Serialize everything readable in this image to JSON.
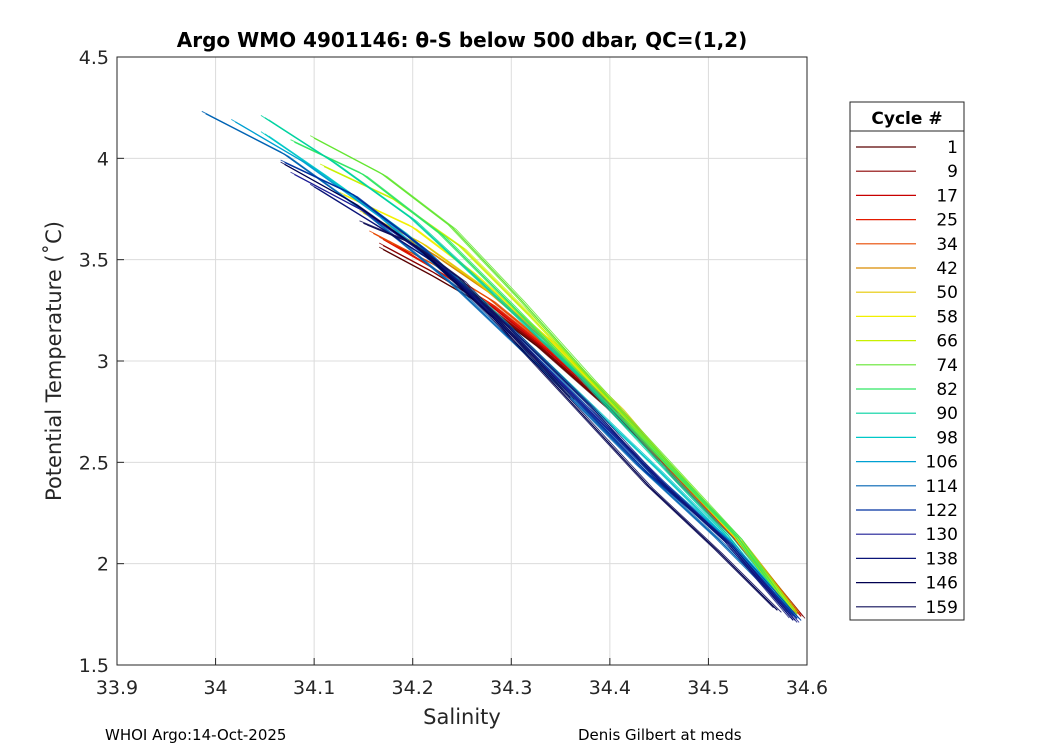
{
  "chart_data": {
    "type": "line",
    "title": "Argo WMO 4901146: θ-S below 500 dbar,  QC=(1,2)",
    "xlabel": "Salinity",
    "ylabel": "Potential Temperature (˚C)",
    "xlim": [
      33.9,
      34.6
    ],
    "ylim": [
      1.5,
      4.5
    ],
    "xticks": [
      "33.9",
      "34",
      "34.1",
      "34.2",
      "34.3",
      "34.4",
      "34.5",
      "34.6"
    ],
    "yticks": [
      "1.5",
      "2",
      "2.5",
      "3",
      "3.5",
      "4",
      "4.5"
    ],
    "grid": true,
    "legend": {
      "title": "Cycle #",
      "position": "right",
      "entries": [
        "1",
        "9",
        "17",
        "25",
        "34",
        "42",
        "50",
        "58",
        "66",
        "74",
        "82",
        "90",
        "98",
        "106",
        "114",
        "122",
        "130",
        "138",
        "146",
        "159"
      ],
      "colors": [
        "#5a0000",
        "#8c0000",
        "#c80000",
        "#e31a00",
        "#e84a00",
        "#d98c00",
        "#e6c800",
        "#f2f000",
        "#c8f000",
        "#64e632",
        "#32e664",
        "#00d2a0",
        "#00c8c8",
        "#00a0d2",
        "#0064b4",
        "#0032a0",
        "#1e1e96",
        "#0a1478",
        "#000050",
        "#10105a"
      ]
    },
    "series": [
      {
        "name": "1",
        "x": [
          34.17,
          34.22,
          34.27,
          34.33,
          34.4,
          34.47,
          34.53,
          34.594
        ],
        "y": [
          3.55,
          3.42,
          3.28,
          3.06,
          2.76,
          2.42,
          2.12,
          1.74
        ]
      },
      {
        "name": "9",
        "x": [
          34.17,
          34.22,
          34.27,
          34.33,
          34.4,
          34.47,
          34.53,
          34.592
        ],
        "y": [
          3.57,
          3.44,
          3.29,
          3.07,
          2.77,
          2.42,
          2.12,
          1.75
        ]
      },
      {
        "name": "17",
        "x": [
          34.18,
          34.23,
          34.28,
          34.34,
          34.41,
          34.47,
          34.53,
          34.59
        ],
        "y": [
          3.58,
          3.43,
          3.27,
          3.04,
          2.74,
          2.4,
          2.11,
          1.76
        ]
      },
      {
        "name": "25",
        "x": [
          34.17,
          34.22,
          34.28,
          34.34,
          34.41,
          34.47,
          34.53,
          34.59
        ],
        "y": [
          3.6,
          3.46,
          3.28,
          3.05,
          2.74,
          2.4,
          2.11,
          1.75
        ]
      },
      {
        "name": "34",
        "x": [
          34.16,
          34.22,
          34.28,
          34.34,
          34.41,
          34.47,
          34.53,
          34.588
        ],
        "y": [
          3.63,
          3.48,
          3.3,
          3.06,
          2.76,
          2.42,
          2.12,
          1.76
        ]
      },
      {
        "name": "42",
        "x": [
          34.16,
          34.22,
          34.28,
          34.34,
          34.41,
          34.47,
          34.53,
          34.588
        ],
        "y": [
          3.7,
          3.53,
          3.33,
          3.08,
          2.76,
          2.43,
          2.13,
          1.77
        ]
      },
      {
        "name": "50",
        "x": [
          34.15,
          34.21,
          34.27,
          34.34,
          34.41,
          34.47,
          34.53,
          34.586
        ],
        "y": [
          3.73,
          3.58,
          3.37,
          3.1,
          2.77,
          2.43,
          2.12,
          1.76
        ]
      },
      {
        "name": "58",
        "x": [
          34.13,
          34.2,
          34.26,
          34.33,
          34.4,
          34.47,
          34.53,
          34.586
        ],
        "y": [
          3.82,
          3.66,
          3.44,
          3.14,
          2.8,
          2.44,
          2.12,
          1.76
        ]
      },
      {
        "name": "66",
        "x": [
          34.11,
          34.18,
          34.25,
          34.32,
          34.39,
          34.46,
          34.53,
          34.586
        ],
        "y": [
          3.96,
          3.8,
          3.56,
          3.22,
          2.86,
          2.48,
          2.13,
          1.77
        ]
      },
      {
        "name": "74",
        "x": [
          34.1,
          34.17,
          34.24,
          34.31,
          34.38,
          34.46,
          34.53,
          34.586
        ],
        "y": [
          4.1,
          3.92,
          3.66,
          3.3,
          2.92,
          2.5,
          2.13,
          1.76
        ]
      },
      {
        "name": "82",
        "x": [
          34.08,
          34.15,
          34.23,
          34.3,
          34.38,
          34.46,
          34.53,
          34.584
        ],
        "y": [
          4.08,
          3.92,
          3.62,
          3.28,
          2.88,
          2.48,
          2.13,
          1.75
        ]
      },
      {
        "name": "90",
        "x": [
          34.05,
          34.12,
          34.2,
          34.28,
          34.37,
          34.45,
          34.52,
          34.584
        ],
        "y": [
          4.2,
          3.98,
          3.7,
          3.34,
          2.92,
          2.5,
          2.14,
          1.75
        ]
      },
      {
        "name": "98",
        "x": [
          34.05,
          34.11,
          34.19,
          34.27,
          34.36,
          34.45,
          34.52,
          34.586
        ],
        "y": [
          4.12,
          3.92,
          3.64,
          3.3,
          2.88,
          2.46,
          2.12,
          1.75
        ]
      },
      {
        "name": "106",
        "x": [
          34.02,
          34.09,
          34.17,
          34.26,
          34.35,
          34.44,
          34.52,
          34.588
        ],
        "y": [
          4.18,
          3.98,
          3.7,
          3.32,
          2.9,
          2.46,
          2.12,
          1.74
        ]
      },
      {
        "name": "114",
        "x": [
          33.99,
          34.07,
          34.15,
          34.24,
          34.34,
          34.43,
          34.51,
          34.59
        ],
        "y": [
          4.22,
          4.02,
          3.74,
          3.38,
          2.92,
          2.48,
          2.12,
          1.73
        ]
      },
      {
        "name": "122",
        "x": [
          34.07,
          34.14,
          34.21,
          34.28,
          34.36,
          34.44,
          34.52,
          34.59
        ],
        "y": [
          3.98,
          3.82,
          3.56,
          3.24,
          2.84,
          2.44,
          2.11,
          1.73
        ]
      },
      {
        "name": "130",
        "x": [
          34.08,
          34.15,
          34.22,
          34.29,
          34.37,
          34.45,
          34.52,
          34.588
        ],
        "y": [
          3.92,
          3.74,
          3.5,
          3.18,
          2.8,
          2.42,
          2.1,
          1.72
        ]
      },
      {
        "name": "138",
        "x": [
          34.1,
          34.16,
          34.23,
          34.3,
          34.38,
          34.45,
          34.52,
          34.586
        ],
        "y": [
          3.86,
          3.68,
          3.46,
          3.16,
          2.78,
          2.41,
          2.1,
          1.72
        ]
      },
      {
        "name": "146",
        "x": [
          34.07,
          34.14,
          34.21,
          34.28,
          34.36,
          34.44,
          34.51,
          34.57
        ],
        "y": [
          3.97,
          3.78,
          3.54,
          3.22,
          2.8,
          2.38,
          2.06,
          1.77
        ]
      },
      {
        "name": "159",
        "x": [
          34.15,
          34.2,
          34.25,
          34.3,
          34.36
        ],
        "y": [
          3.68,
          3.58,
          3.4,
          3.14,
          2.82
        ]
      }
    ]
  },
  "footer": {
    "left": "WHOI Argo:14-Oct-2025",
    "right": "Denis Gilbert at meds"
  }
}
